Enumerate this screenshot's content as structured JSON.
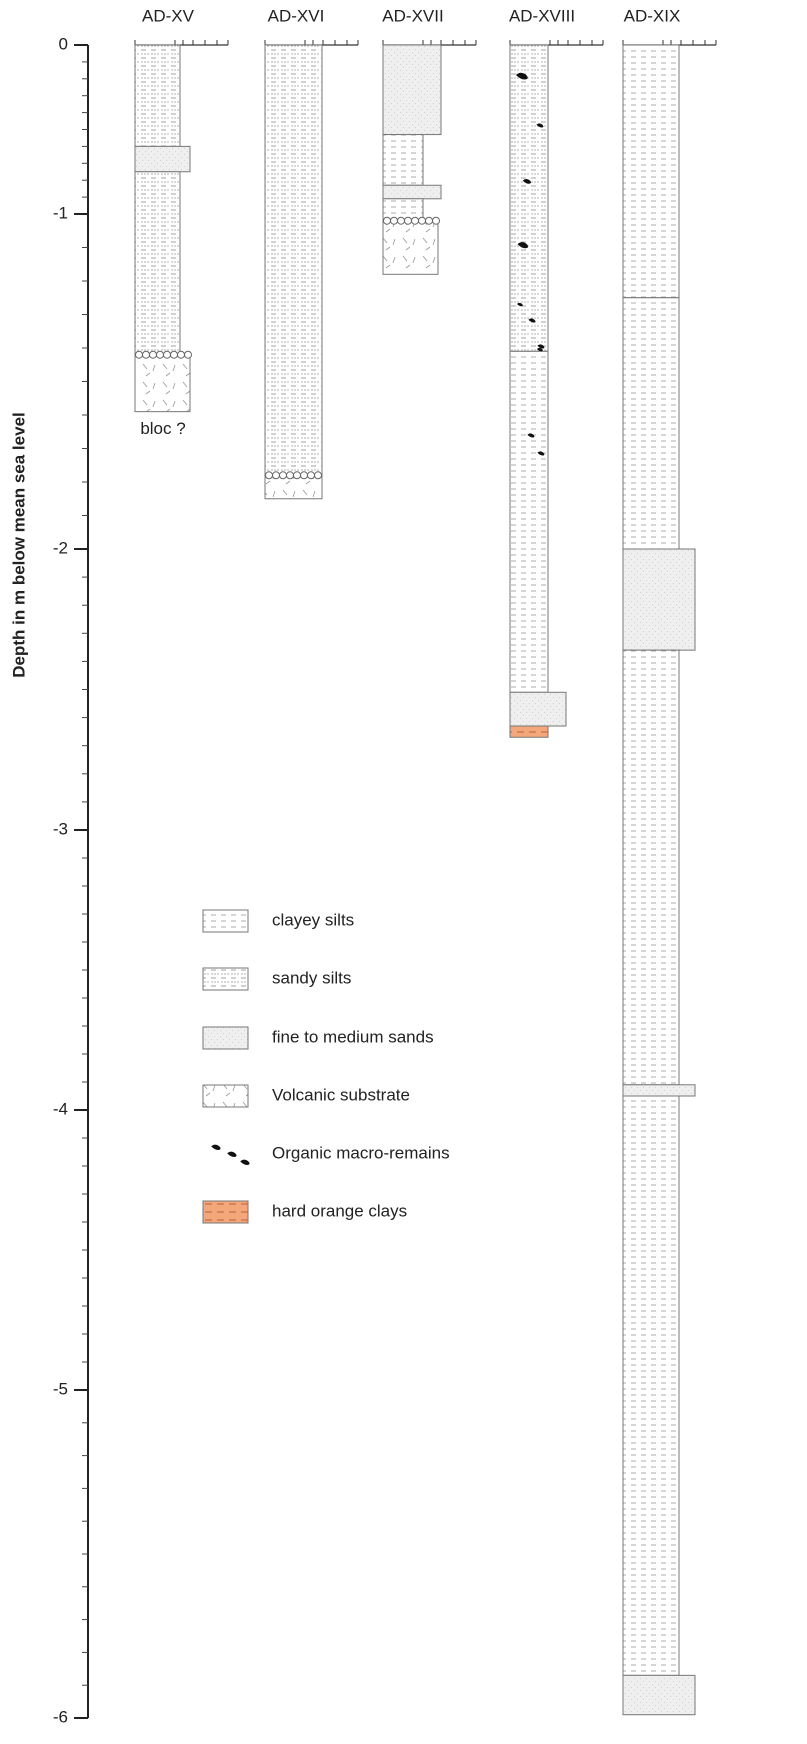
{
  "axis": {
    "label": "Depth in m below mean sea level",
    "ticks": [
      0,
      -1,
      -2,
      -3,
      -4,
      -5,
      -6
    ]
  },
  "columns": [
    {
      "name": "AD-XV",
      "note": "bloc ?",
      "layers": [
        {
          "top": 0,
          "bottom": -0.6,
          "lithology": "sandy silts"
        },
        {
          "top": -0.6,
          "bottom": -0.75,
          "lithology": "fine to medium sands"
        },
        {
          "top": -0.75,
          "bottom": -1.42,
          "lithology": "sandy silts"
        },
        {
          "top": -1.42,
          "bottom": -1.59,
          "lithology": "Volcanic substrate"
        }
      ]
    },
    {
      "name": "AD-XVI",
      "layers": [
        {
          "top": 0,
          "bottom": -1.78,
          "lithology": "sandy silts"
        },
        {
          "top": -1.78,
          "bottom": -1.85,
          "lithology": "Volcanic substrate"
        }
      ]
    },
    {
      "name": "AD-XVII",
      "layers": [
        {
          "top": 0,
          "bottom": -0.53,
          "lithology": "fine to medium sands"
        },
        {
          "top": -0.53,
          "bottom": -0.83,
          "lithology": "clayey silts"
        },
        {
          "top": -0.83,
          "bottom": -0.91,
          "lithology": "fine to medium sands"
        },
        {
          "top": -0.91,
          "bottom": -1.02,
          "lithology": "clayey silts"
        },
        {
          "top": -1.02,
          "bottom": -1.18,
          "lithology": "Volcanic substrate"
        }
      ]
    },
    {
      "name": "AD-XVIII",
      "layers": [
        {
          "top": 0,
          "bottom": -1.41,
          "lithology": "sandy silts"
        },
        {
          "top": -1.41,
          "bottom": -2.51,
          "lithology": "clayey silts"
        },
        {
          "top": -2.51,
          "bottom": -2.63,
          "lithology": "fine to medium sands"
        },
        {
          "top": -2.63,
          "bottom": -2.67,
          "lithology": "hard orange clays"
        }
      ]
    },
    {
      "name": "AD-XIX",
      "layers": [
        {
          "top": 0,
          "bottom": -1.25,
          "lithology": "clayey silts"
        },
        {
          "top": -1.25,
          "bottom": -2,
          "lithology": "clayey silts"
        },
        {
          "top": -2,
          "bottom": -2.36,
          "lithology": "fine to medium sands"
        },
        {
          "top": -2.36,
          "bottom": -3.91,
          "lithology": "clayey silts"
        },
        {
          "top": -3.91,
          "bottom": -3.95,
          "lithology": "fine to medium sands"
        },
        {
          "top": -3.95,
          "bottom": -5.87,
          "lithology": "clayey silts"
        },
        {
          "top": -5.87,
          "bottom": -5.99,
          "lithology": "fine to medium sands"
        }
      ]
    }
  ],
  "legend": [
    {
      "label": "clayey silts"
    },
    {
      "label": "sandy silts"
    },
    {
      "label": "fine to medium sands"
    },
    {
      "label": "Volcanic substrate"
    },
    {
      "label": "Organic macro-remains"
    },
    {
      "label": "hard orange clays"
    }
  ]
}
